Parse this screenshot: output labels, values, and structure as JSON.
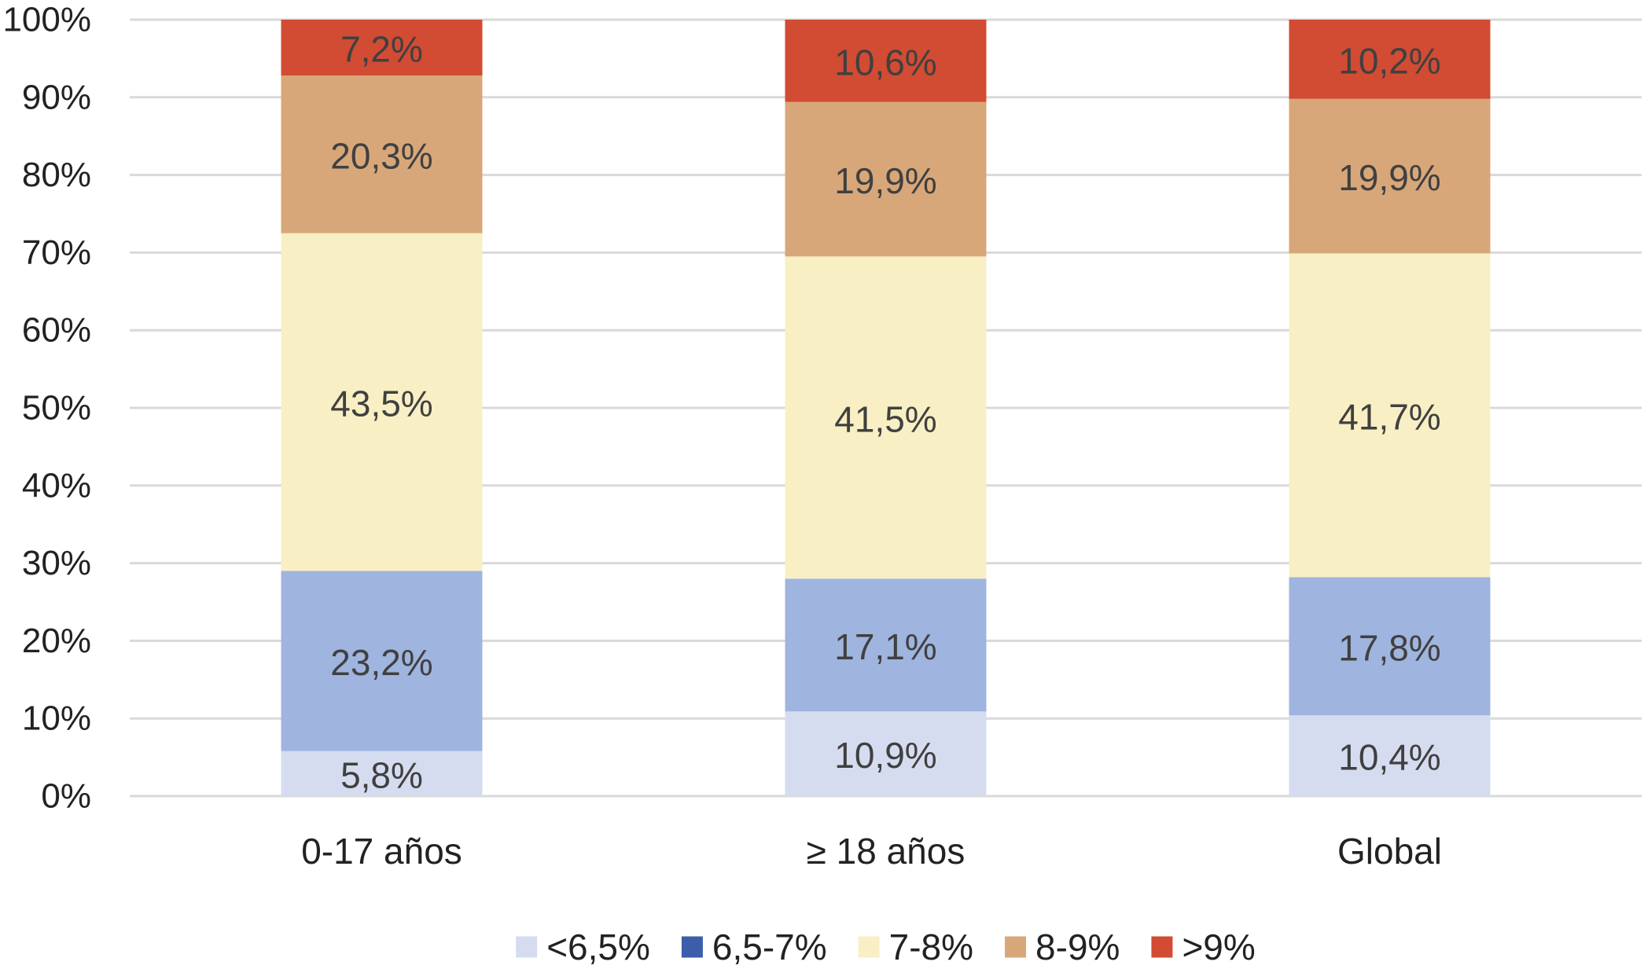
{
  "chart_data": {
    "type": "bar",
    "stacked": true,
    "percent_stacked": true,
    "title": "",
    "xlabel": "",
    "ylabel": "",
    "ylim": [
      0,
      100
    ],
    "y_ticks": [
      "0%",
      "10%",
      "20%",
      "30%",
      "40%",
      "50%",
      "60%",
      "70%",
      "80%",
      "90%",
      "100%"
    ],
    "grid": true,
    "legend_position": "bottom",
    "categories": [
      "0-17 años",
      "≥ 18 años",
      "Global"
    ],
    "series": [
      {
        "name": "<6,5%",
        "color": "#d6dcf0",
        "values": [
          5.8,
          10.9,
          10.4
        ],
        "labels": [
          "5,8%",
          "10,9%",
          "10,4%"
        ]
      },
      {
        "name": "6,5-7%",
        "color": "#9fb4de",
        "legend_color": "#3c5daa",
        "values": [
          23.2,
          17.1,
          17.8
        ],
        "labels": [
          "23,2%",
          "17,1%",
          "17,8%"
        ]
      },
      {
        "name": "7-8%",
        "color": "#f8efc4",
        "values": [
          43.5,
          41.5,
          41.7
        ],
        "labels": [
          "43,5%",
          "41,5%",
          "41,7%"
        ]
      },
      {
        "name": "8-9%",
        "color": "#d8a779",
        "values": [
          20.3,
          19.9,
          19.9
        ],
        "labels": [
          "20,3%",
          "19,9%",
          "19,9%"
        ]
      },
      {
        "name": ">9%",
        "color": "#d24b33",
        "values": [
          7.2,
          10.6,
          10.2
        ],
        "labels": [
          "7,2%",
          "10,6%",
          "10,2%"
        ]
      }
    ]
  }
}
